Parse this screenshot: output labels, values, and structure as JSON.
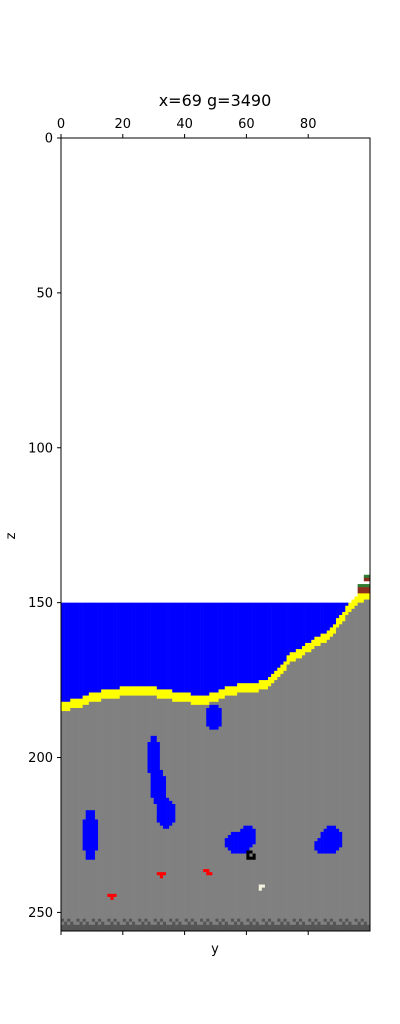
{
  "chart_data": {
    "type": "heatmap",
    "title": "x=69 g=3490",
    "xlabel": "y",
    "ylabel": "z",
    "x_axis_position": "top",
    "xlim": [
      0,
      100
    ],
    "ylim": [
      256,
      0
    ],
    "x_ticks": [
      0,
      20,
      40,
      60,
      80
    ],
    "y_ticks": [
      0,
      50,
      100,
      150,
      200,
      250
    ],
    "grid": false,
    "legend": "none",
    "colors": {
      "air": "#ffffff",
      "water": "#0000ff",
      "sand": "#ffff00",
      "stone": "#808080",
      "bedrock": "#555555",
      "grass": "#2e7d32",
      "dirt": "#8b2e1e",
      "ore_red": "#ff0000",
      "ore_black": "#000000",
      "ore_white": "#f4f2e0"
    },
    "water_level": 150,
    "terrain_surface": [
      [
        0,
        182
      ],
      [
        5,
        181
      ],
      [
        10,
        179
      ],
      [
        15,
        178
      ],
      [
        22,
        177
      ],
      [
        28,
        177
      ],
      [
        33,
        178
      ],
      [
        38,
        179
      ],
      [
        46,
        180
      ],
      [
        49,
        179
      ],
      [
        53,
        177
      ],
      [
        60,
        176
      ],
      [
        66,
        175
      ],
      [
        71,
        170
      ],
      [
        74,
        166
      ],
      [
        78,
        164
      ],
      [
        82,
        161
      ],
      [
        86,
        159
      ],
      [
        90,
        154
      ],
      [
        93,
        150
      ],
      [
        96,
        147
      ],
      [
        100,
        145
      ]
    ],
    "sand_thickness": 3,
    "topsoil": [
      [
        96,
        144,
        3
      ],
      [
        98,
        141,
        2
      ]
    ],
    "bedrock_rows": [
      252,
      256
    ],
    "water_pockets": [
      {
        "y": [
          47,
          51
        ],
        "z": [
          183,
          190
        ]
      },
      {
        "y": [
          28,
          31
        ],
        "z": [
          193,
          206
        ]
      },
      {
        "y": [
          29,
          33
        ],
        "z": [
          204,
          214
        ]
      },
      {
        "y": [
          31,
          36
        ],
        "z": [
          213,
          222
        ]
      },
      {
        "y": [
          7,
          11
        ],
        "z": [
          217,
          232
        ]
      },
      {
        "y": [
          53,
          61
        ],
        "z": [
          224,
          230
        ]
      },
      {
        "y": [
          58,
          62
        ],
        "z": [
          222,
          228
        ]
      },
      {
        "y": [
          84,
          90
        ],
        "z": [
          222,
          230
        ]
      },
      {
        "y": [
          82,
          86
        ],
        "z": [
          226,
          230
        ]
      }
    ],
    "ore_blocks": [
      {
        "color": "ore_red",
        "cells": [
          [
            15,
            244
          ],
          [
            16,
            244
          ],
          [
            17,
            244
          ],
          [
            16,
            245
          ]
        ]
      },
      {
        "color": "ore_red",
        "cells": [
          [
            31,
            237
          ],
          [
            32,
            237
          ],
          [
            33,
            237
          ],
          [
            32,
            238
          ]
        ]
      },
      {
        "color": "ore_red",
        "cells": [
          [
            46,
            236
          ],
          [
            47,
            236
          ],
          [
            47,
            237
          ],
          [
            48,
            237
          ]
        ]
      },
      {
        "color": "ore_black",
        "cells": [
          [
            60,
            230
          ],
          [
            61,
            230
          ],
          [
            60,
            231
          ],
          [
            62,
            231
          ],
          [
            60,
            232
          ],
          [
            61,
            232
          ],
          [
            62,
            232
          ]
        ]
      },
      {
        "color": "ore_white",
        "cells": [
          [
            64,
            241
          ],
          [
            65,
            241
          ],
          [
            64,
            242
          ]
        ]
      }
    ]
  }
}
